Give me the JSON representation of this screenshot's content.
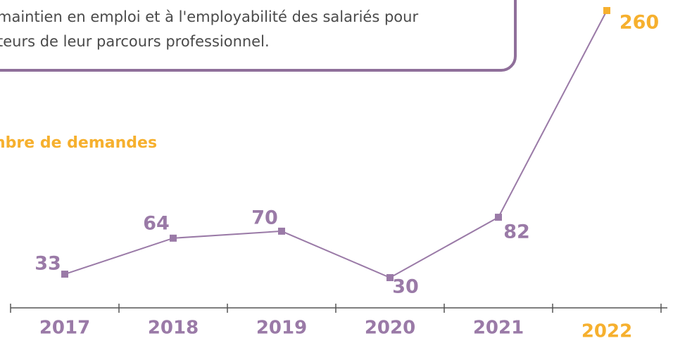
{
  "intro": {
    "lines": [
      "maintien en emploi et à l'employabilité des salariés pour",
      "teurs de leur parcours professionnel."
    ]
  },
  "chart_data": {
    "type": "line",
    "y_label": "nbre de demandes",
    "categories": [
      "2017",
      "2018",
      "2019",
      "2020",
      "2021",
      "2022"
    ],
    "values": [
      33,
      64,
      70,
      30,
      82,
      260
    ],
    "color": "#9a7aa7",
    "point_colors": [
      "#9a7aa7",
      "#9a7aa7",
      "#9a7aa7",
      "#9a7aa7",
      "#9a7aa7",
      "#f6b02e"
    ]
  }
}
